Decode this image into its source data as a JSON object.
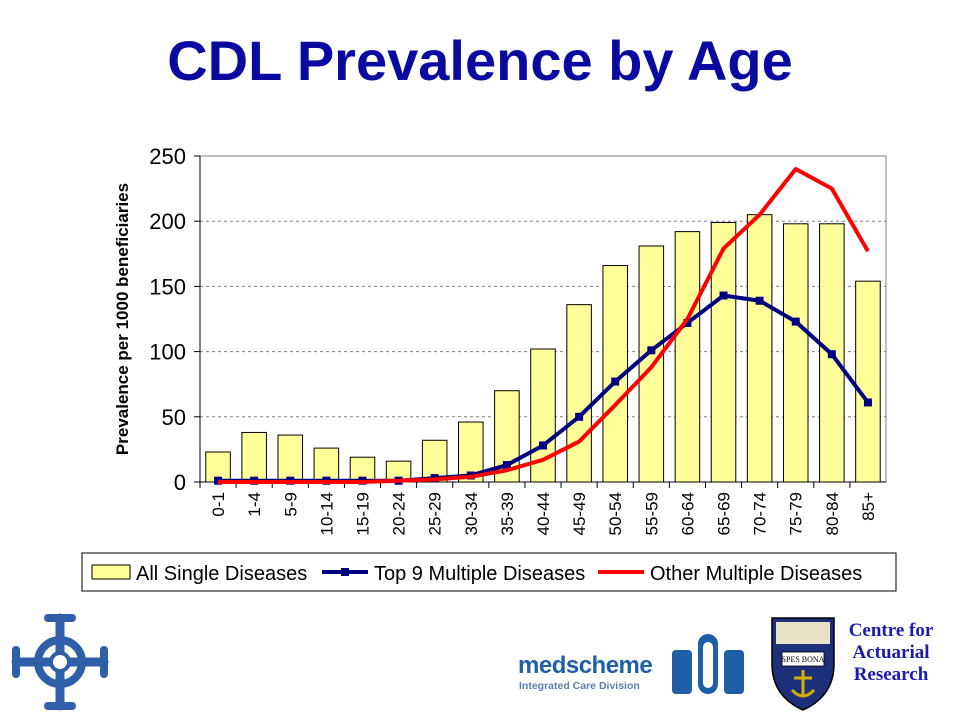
{
  "slide": {
    "title": "CDL Prevalence by Age"
  },
  "chart_data": {
    "type": "bar",
    "ylabel": "Prevalence per 1000 beneficiaries",
    "ylim": [
      0,
      250
    ],
    "yticks": [
      0,
      50,
      100,
      150,
      200,
      250
    ],
    "grid": true,
    "legend_position": "bottom",
    "categories": [
      "0-1",
      "1-4",
      "5-9",
      "10-14",
      "15-19",
      "20-24",
      "25-29",
      "30-34",
      "35-39",
      "40-44",
      "45-49",
      "50-54",
      "55-59",
      "60-64",
      "65-69",
      "70-74",
      "75-79",
      "80-84",
      "85+"
    ],
    "series": [
      {
        "name": "All Single Diseases",
        "kind": "bar",
        "color": "#ffff99",
        "values": [
          23,
          38,
          36,
          26,
          19,
          16,
          32,
          46,
          70,
          102,
          136,
          166,
          181,
          192,
          199,
          205,
          198,
          198,
          154
        ]
      },
      {
        "name": "Top 9 Multiple Diseases",
        "kind": "line-marker",
        "color": "#000080",
        "values": [
          1,
          1,
          1,
          1,
          1,
          1,
          3,
          5,
          13,
          28,
          50,
          77,
          101,
          122,
          143,
          139,
          123,
          98,
          61
        ]
      },
      {
        "name": "Other Multiple Diseases",
        "kind": "line",
        "color": "#ff0000",
        "values": [
          0,
          0,
          0,
          0,
          0,
          1,
          2,
          4,
          9,
          17,
          31,
          59,
          88,
          125,
          179,
          205,
          240,
          225,
          177
        ]
      }
    ]
  },
  "footer": {
    "cfar_lines": [
      "Centre for",
      "Actuarial",
      "Research"
    ],
    "medscheme_name": "medscheme",
    "medscheme_division": "Integrated Care Division",
    "seal_motto": "SPES BONA"
  }
}
